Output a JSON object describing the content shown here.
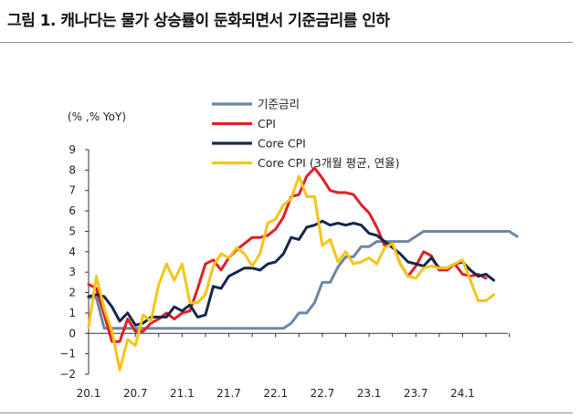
{
  "header": {
    "title": "그림 1. 캐나다는 물가 상승률이 둔화되면서 기준금리를 인하"
  },
  "chart_data": {
    "type": "line",
    "title": "",
    "unit_label": "(% ,% YoY)",
    "xlabel": "",
    "ylabel": "",
    "ylim": [
      -2,
      9
    ],
    "yticks": [
      "9",
      "8",
      "7",
      "6",
      "5",
      "4",
      "3",
      "2",
      "1",
      "0",
      "−1",
      "−2"
    ],
    "yticks_values": [
      9,
      8,
      7,
      6,
      5,
      4,
      3,
      2,
      1,
      0,
      -1,
      -2
    ],
    "xticks": [
      "20.1",
      "20.7",
      "21.1",
      "21.7",
      "22.1",
      "22.7",
      "23.1",
      "23.7",
      "24.1"
    ],
    "xticks_months": [
      0,
      6,
      12,
      18,
      24,
      30,
      36,
      42,
      48
    ],
    "x_start": "2020-01",
    "legend_position": "top-center",
    "grid": false,
    "series": [
      {
        "name": "기준금리",
        "color": "#6b87a3",
        "values": [
          1.75,
          1.75,
          0.25,
          0.25,
          0.25,
          0.25,
          0.25,
          0.25,
          0.25,
          0.25,
          0.25,
          0.25,
          0.25,
          0.25,
          0.25,
          0.25,
          0.25,
          0.25,
          0.25,
          0.25,
          0.25,
          0.25,
          0.25,
          0.25,
          0.25,
          0.25,
          0.5,
          1.0,
          1.0,
          1.5,
          2.5,
          2.5,
          3.25,
          3.75,
          3.75,
          4.25,
          4.25,
          4.5,
          4.5,
          4.5,
          4.5,
          4.5,
          4.75,
          5.0,
          5.0,
          5.0,
          5.0,
          5.0,
          5.0,
          5.0,
          5.0,
          5.0,
          5.0,
          5.0,
          5.0,
          4.75
        ]
      },
      {
        "name": "CPI",
        "color": "#e01f26",
        "values": [
          2.4,
          2.2,
          0.9,
          -0.4,
          -0.4,
          0.7,
          0.1,
          0.1,
          0.5,
          0.7,
          1.0,
          0.7,
          1.0,
          1.1,
          2.2,
          3.4,
          3.6,
          3.1,
          3.7,
          4.1,
          4.4,
          4.7,
          4.7,
          4.8,
          5.1,
          5.7,
          6.7,
          6.8,
          7.7,
          8.1,
          7.6,
          7.0,
          6.9,
          6.9,
          6.8,
          6.3,
          5.9,
          5.2,
          4.3,
          4.4,
          3.4,
          2.8,
          3.3,
          4.0,
          3.8,
          3.1,
          3.1,
          3.4,
          2.9,
          2.8,
          2.9,
          2.7
        ]
      },
      {
        "name": "Core CPI",
        "color": "#14284b",
        "values": [
          1.8,
          1.9,
          1.8,
          1.3,
          0.6,
          1.0,
          0.4,
          0.5,
          0.8,
          0.8,
          0.8,
          1.3,
          1.1,
          1.4,
          0.8,
          0.9,
          2.3,
          2.2,
          2.8,
          3.0,
          3.2,
          3.2,
          3.1,
          3.4,
          3.5,
          3.9,
          4.7,
          4.6,
          5.2,
          5.3,
          5.5,
          5.3,
          5.4,
          5.3,
          5.4,
          5.3,
          4.9,
          4.8,
          4.5,
          4.2,
          3.9,
          3.5,
          3.4,
          3.3,
          3.7,
          3.2,
          3.2,
          3.4,
          3.5,
          3.1,
          2.8,
          2.9,
          2.6
        ]
      },
      {
        "name": "Core CPI (3개월 평균, 연율)",
        "color": "#f5c418",
        "values": [
          0.3,
          2.8,
          1.2,
          0.1,
          -1.8,
          -0.3,
          -0.6,
          0.9,
          0.6,
          2.4,
          3.4,
          2.6,
          3.4,
          1.5,
          1.5,
          1.9,
          3.3,
          3.9,
          3.7,
          4.2,
          3.9,
          3.3,
          3.9,
          5.4,
          5.6,
          6.3,
          6.6,
          7.7,
          6.7,
          6.7,
          4.3,
          4.6,
          3.5,
          4.0,
          3.4,
          3.5,
          3.7,
          3.4,
          4.2,
          4.4,
          3.4,
          2.8,
          2.7,
          3.2,
          3.3,
          3.2,
          3.2,
          3.4,
          3.6,
          2.6,
          1.6,
          1.6,
          1.9
        ]
      }
    ]
  }
}
